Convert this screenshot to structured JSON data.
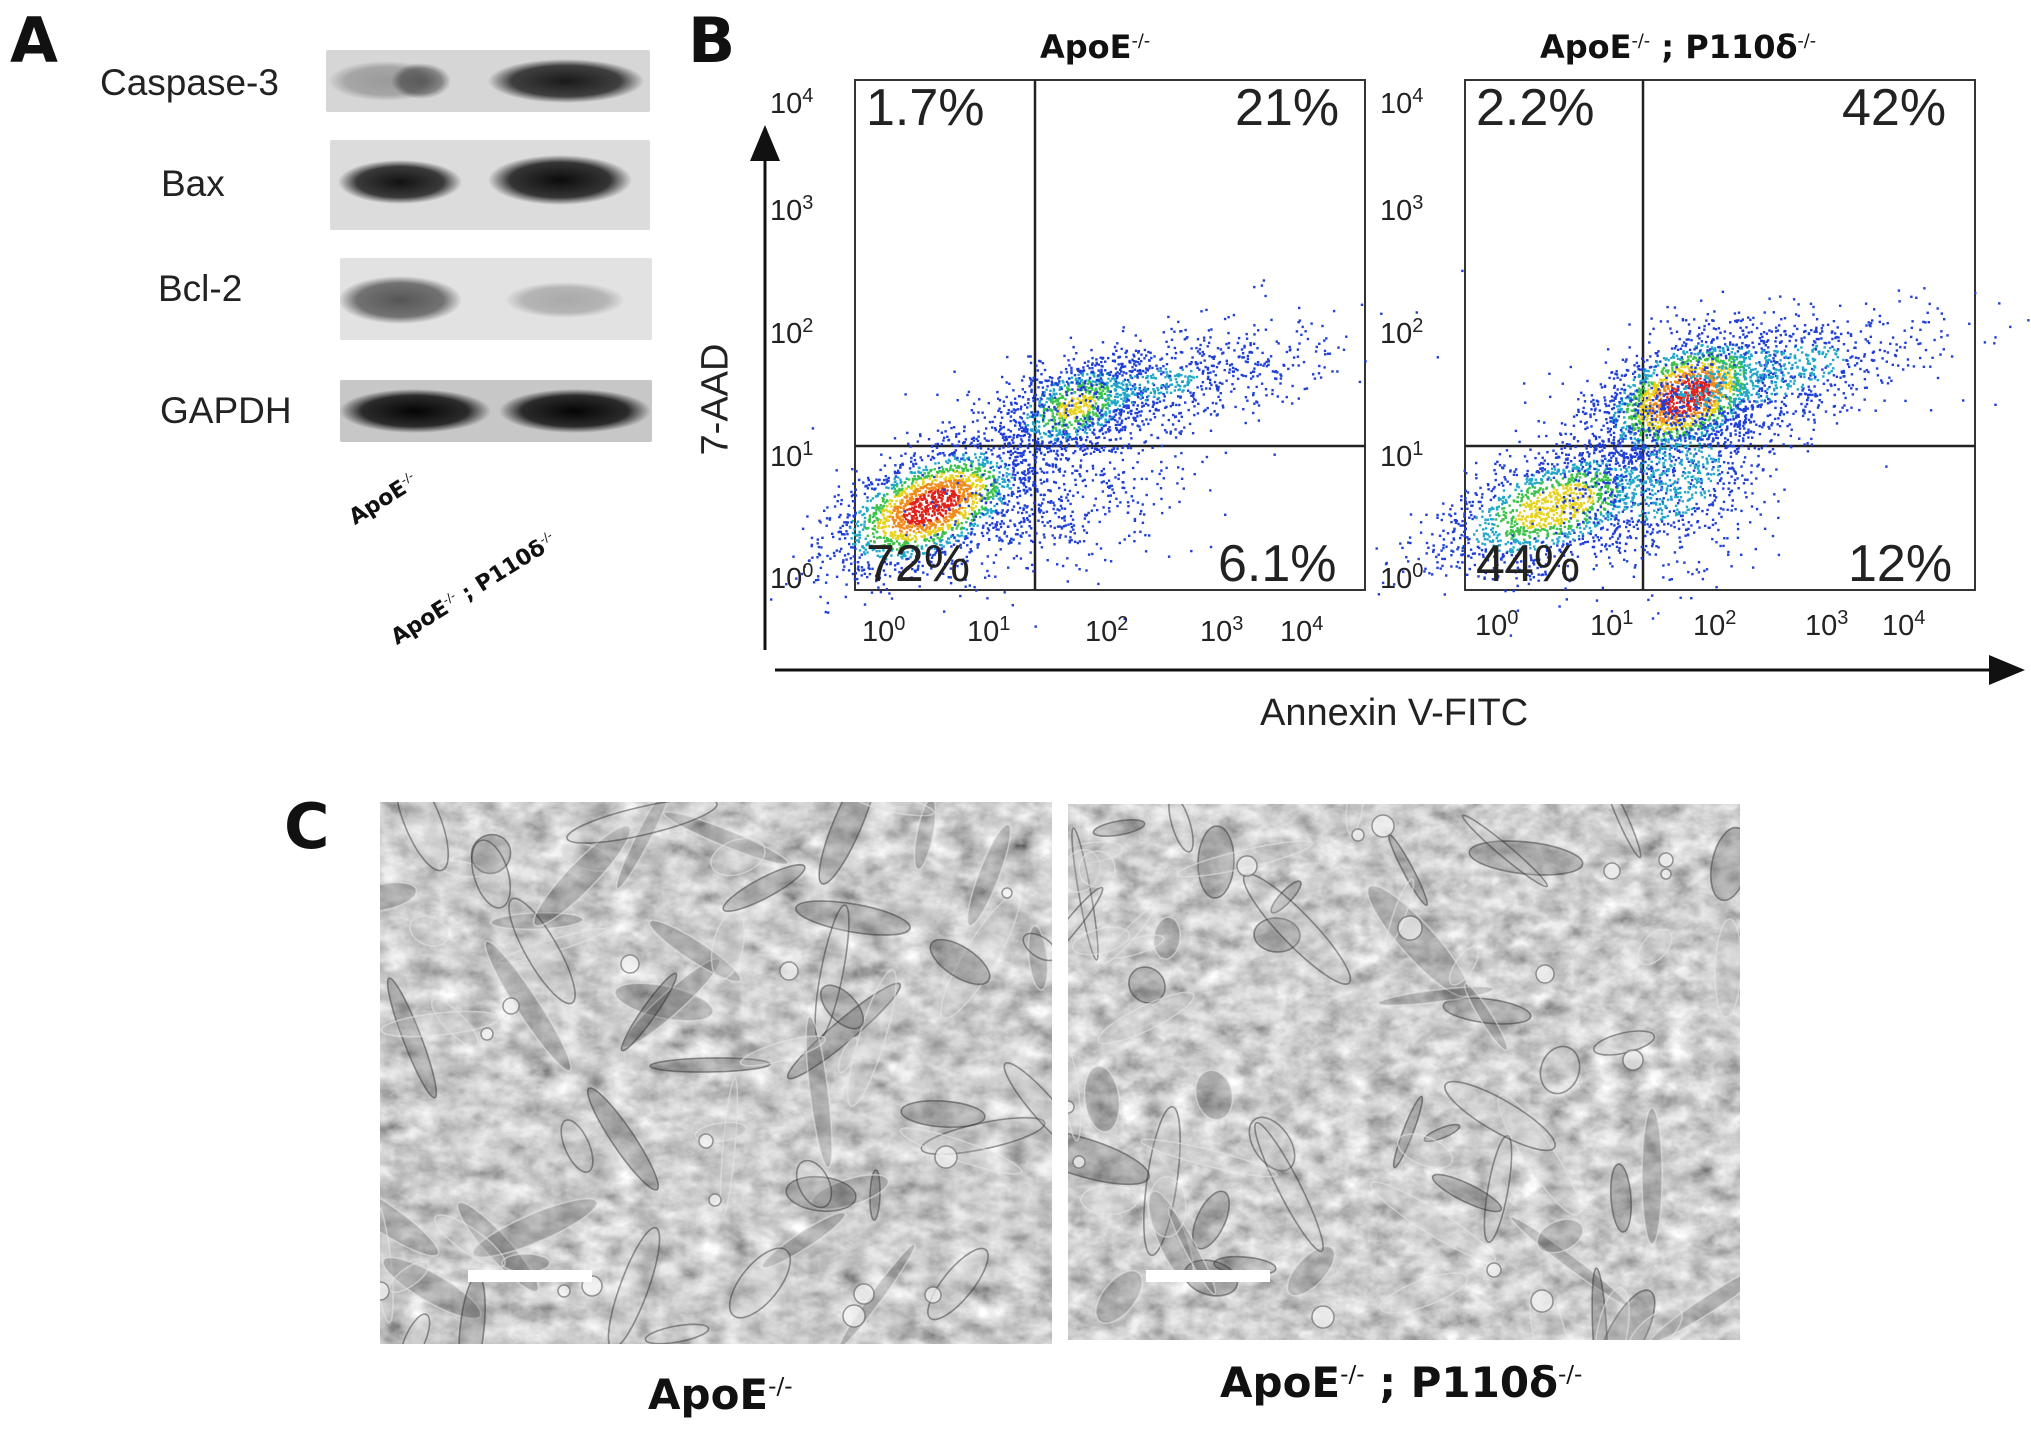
{
  "panels": {
    "a": {
      "letter": "A"
    },
    "b": {
      "letter": "B"
    },
    "c": {
      "letter": "C"
    }
  },
  "western_blot": {
    "proteins": [
      "Caspase-3",
      "Bax",
      "Bcl-2",
      "GAPDH"
    ],
    "lanes": [
      {
        "genotype": "ApoE",
        "sup": "-/-"
      },
      {
        "genotype": "ApoE",
        "sup": "-/-",
        "genotype2": " ; P110δ",
        "sup2": "-/-"
      }
    ],
    "band_intensity": {
      "Caspase-3": [
        0.45,
        0.85
      ],
      "Bax": [
        0.85,
        0.95
      ],
      "Bcl-2": [
        0.7,
        0.35
      ],
      "GAPDH": [
        0.95,
        0.95
      ]
    }
  },
  "flow": {
    "x_axis_label": "Annexin V-FITC",
    "y_axis_label": "7-AAD",
    "x_ticks": [
      "10",
      "10",
      "10",
      "10",
      "10"
    ],
    "tick_exponents": [
      "0",
      "1",
      "2",
      "3",
      "4"
    ],
    "plots": [
      {
        "title": "ApoE",
        "title_sup": "-/-",
        "quadrants": {
          "upper_left": "1.7%",
          "upper_right": "21%",
          "lower_left": "72%",
          "lower_right": "6.1%"
        }
      },
      {
        "title": "ApoE",
        "title_sup": "-/-",
        "title2": " ; P110δ",
        "title2_sup": "-/-",
        "quadrants": {
          "upper_left": "2.2%",
          "upper_right": "42%",
          "lower_left": "44%",
          "lower_right": "12%"
        }
      }
    ]
  },
  "micrographs": [
    {
      "label": "ApoE",
      "label_sup": "-/-"
    },
    {
      "label": "ApoE",
      "label_sup": "-/-",
      "label2": " ; P110δ",
      "label2_sup": "-/-"
    }
  ],
  "colors": {
    "ink": "#1a1a1a",
    "density_low": "#1f3fd6",
    "density_high": "#e0231b"
  }
}
